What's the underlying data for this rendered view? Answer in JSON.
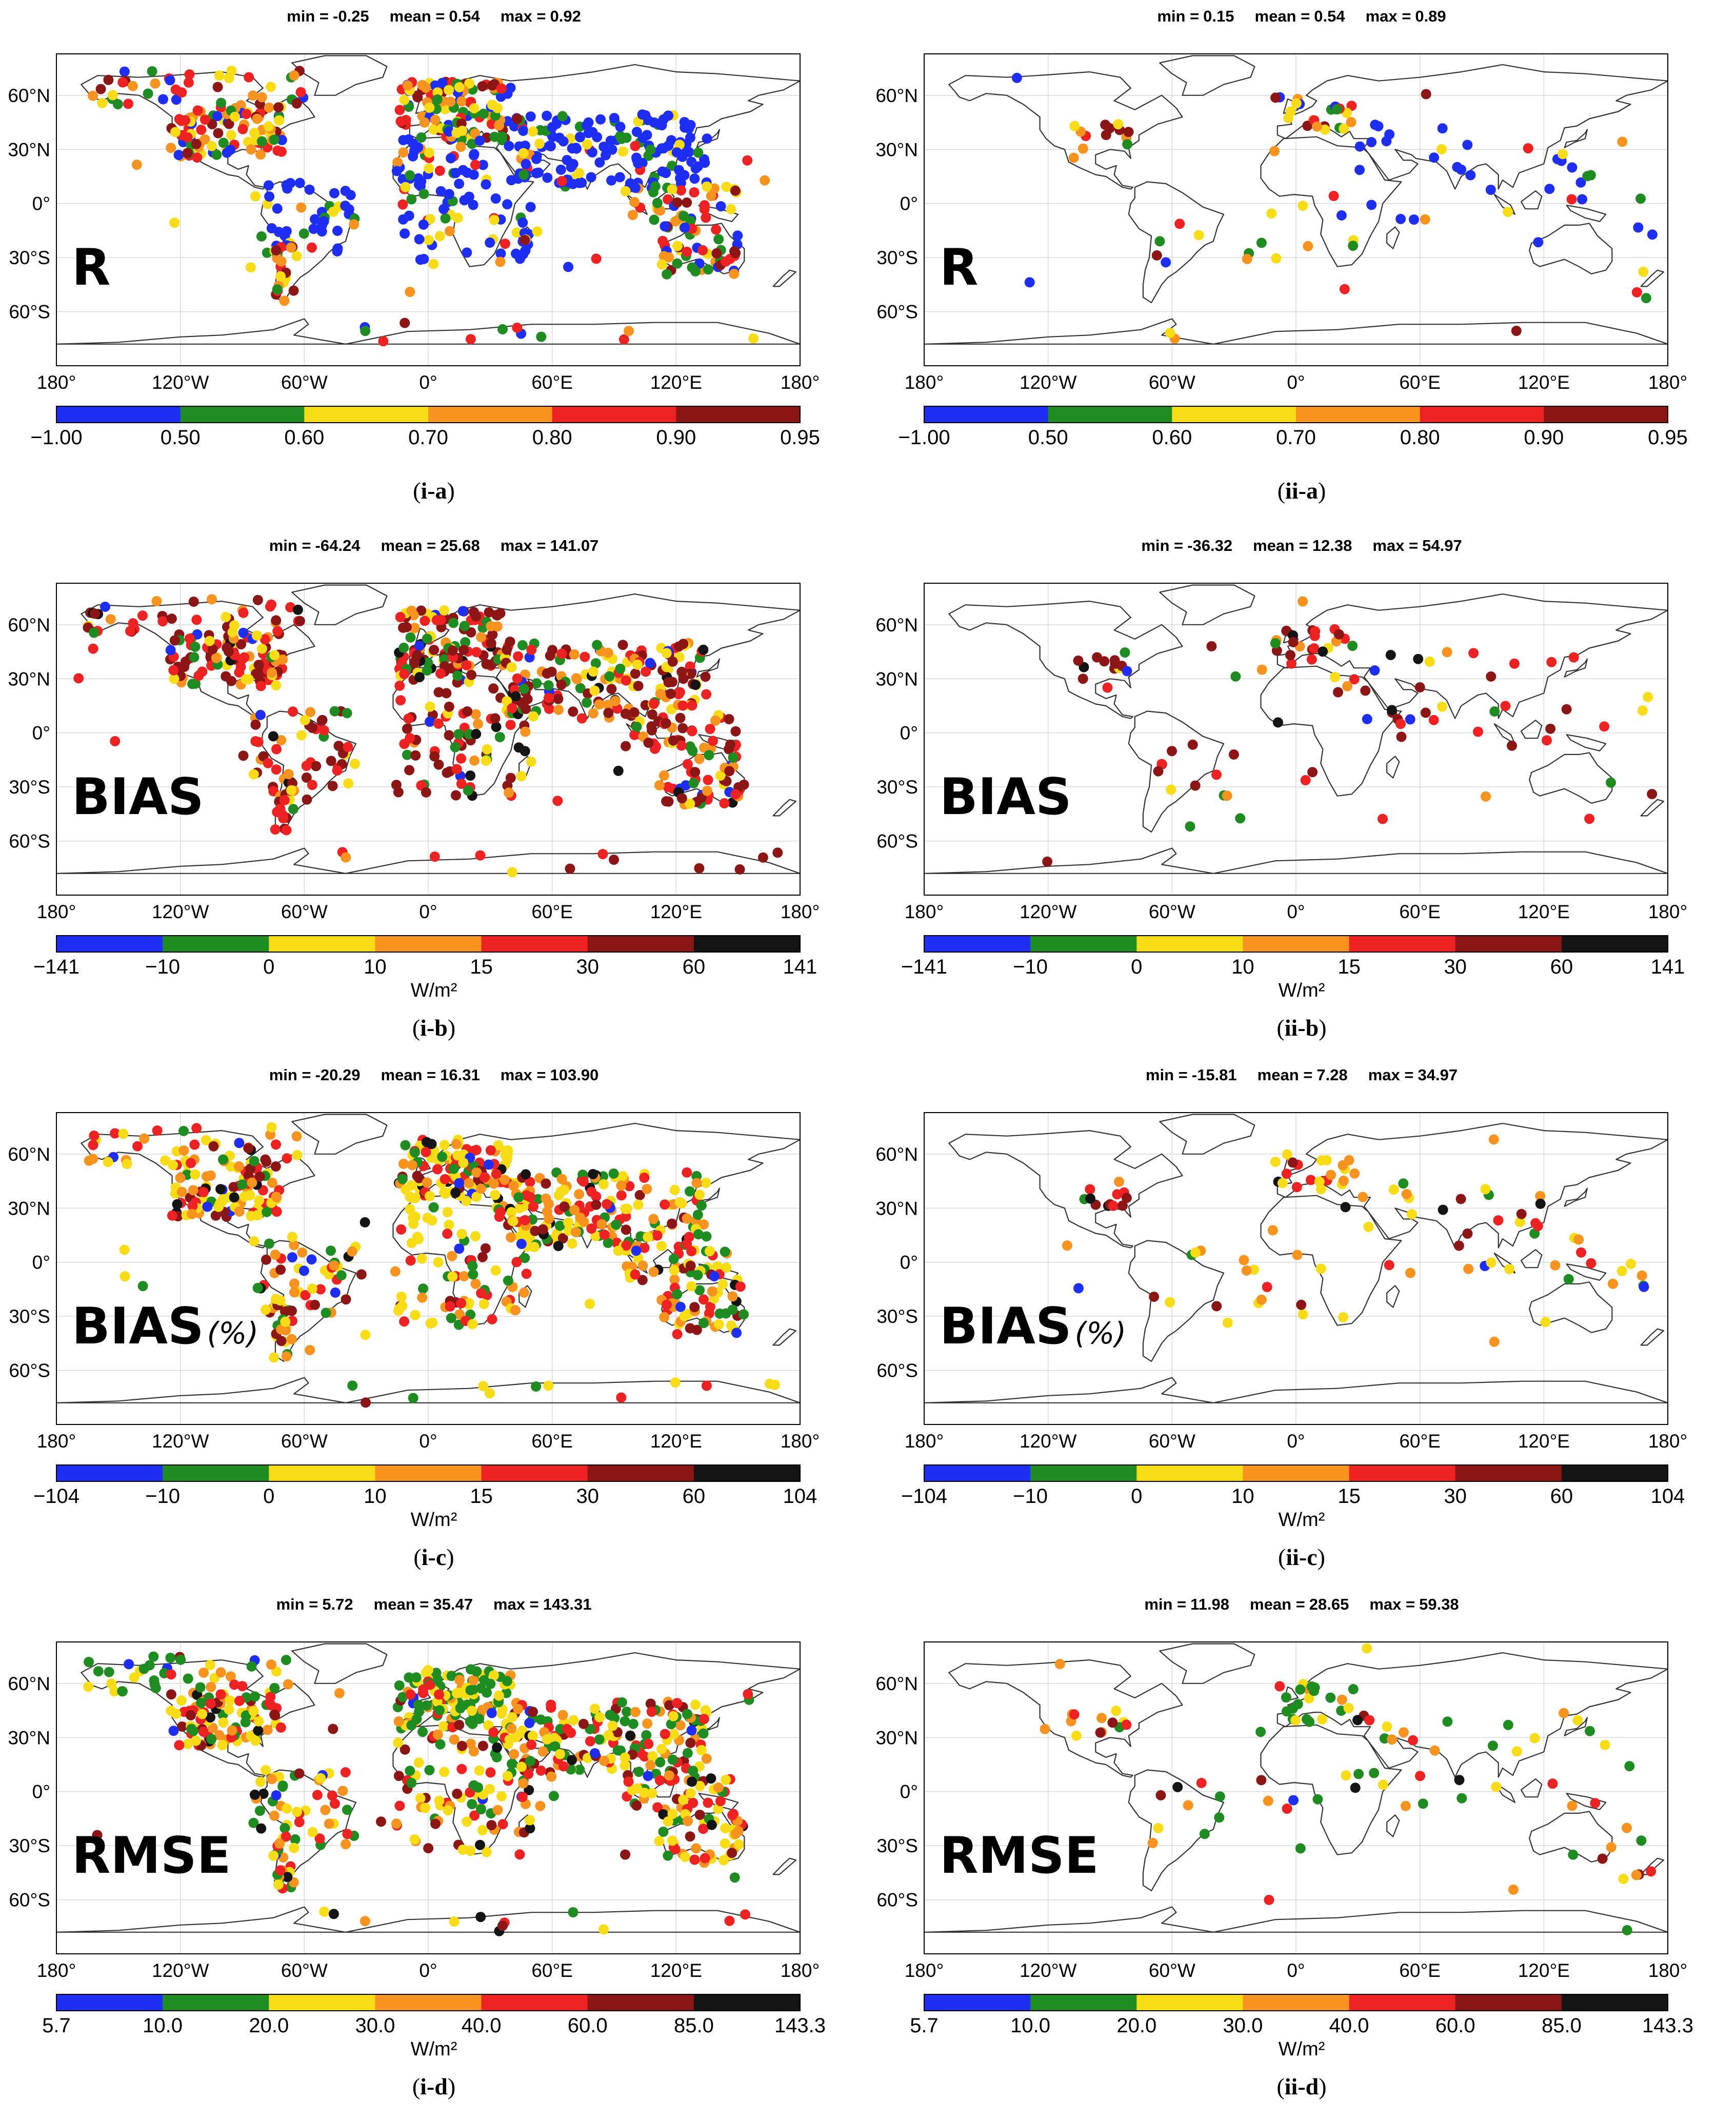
{
  "stats_labels": {
    "min": "min =",
    "mean": "mean =",
    "max": "max ="
  },
  "lat_labels": [
    "60°N",
    "30°N",
    "0°",
    "30°S",
    "60°S"
  ],
  "lon_labels": [
    "180°",
    "120°W",
    "60°W",
    "0°",
    "60°E",
    "120°E",
    "180°"
  ],
  "colorbar_colors": [
    "#1f2ef5",
    "#1f8c22",
    "#f7dc16",
    "#f7931e",
    "#ee2223",
    "#8c1616",
    "#141414"
  ],
  "panels": [
    {
      "id": "i-a",
      "label_main": "i",
      "label_sub": "a",
      "metric": "R",
      "metric_suffix": "",
      "min": "-0.25",
      "mean": "0.54",
      "max": "0.92",
      "ticks": [
        "−1.00",
        "0.50",
        "0.60",
        "0.70",
        "0.80",
        "0.90",
        "0.95"
      ],
      "unit": "",
      "network": "dense"
    },
    {
      "id": "ii-a",
      "label_main": "ii",
      "label_sub": "a",
      "metric": "R",
      "metric_suffix": "",
      "min": "0.15",
      "mean": "0.54",
      "max": "0.89",
      "ticks": [
        "−1.00",
        "0.50",
        "0.60",
        "0.70",
        "0.80",
        "0.90",
        "0.95"
      ],
      "unit": "",
      "network": "sparse"
    },
    {
      "id": "i-b",
      "label_main": "i",
      "label_sub": "b",
      "metric": "BIAS",
      "metric_suffix": "",
      "min": "-64.24",
      "mean": "25.68",
      "max": "141.07",
      "ticks": [
        "−141",
        "−10",
        "0",
        "10",
        "15",
        "30",
        "60",
        "141"
      ],
      "unit": "W/m²",
      "network": "dense"
    },
    {
      "id": "ii-b",
      "label_main": "ii",
      "label_sub": "b",
      "metric": "BIAS",
      "metric_suffix": "",
      "min": "-36.32",
      "mean": "12.38",
      "max": "54.97",
      "ticks": [
        "−141",
        "−10",
        "0",
        "10",
        "15",
        "30",
        "60",
        "141"
      ],
      "unit": "W/m²",
      "network": "sparse"
    },
    {
      "id": "i-c",
      "label_main": "i",
      "label_sub": "c",
      "metric": "BIAS",
      "metric_suffix": "(%)",
      "min": "-20.29",
      "mean": "16.31",
      "max": "103.90",
      "ticks": [
        "−104",
        "−10",
        "0",
        "10",
        "15",
        "30",
        "60",
        "104"
      ],
      "unit": "W/m²",
      "network": "dense"
    },
    {
      "id": "ii-c",
      "label_main": "ii",
      "label_sub": "c",
      "metric": "BIAS",
      "metric_suffix": "(%)",
      "min": "-15.81",
      "mean": "7.28",
      "max": "34.97",
      "ticks": [
        "−104",
        "−10",
        "0",
        "10",
        "15",
        "30",
        "60",
        "104"
      ],
      "unit": "W/m²",
      "network": "sparse"
    },
    {
      "id": "i-d",
      "label_main": "i",
      "label_sub": "d",
      "metric": "RMSE",
      "metric_suffix": "",
      "min": "5.72",
      "mean": "35.47",
      "max": "143.31",
      "ticks": [
        "5.7",
        "10.0",
        "20.0",
        "30.0",
        "40.0",
        "60.0",
        "85.0",
        "143.3"
      ],
      "unit": "W/m²",
      "network": "dense"
    },
    {
      "id": "ii-d",
      "label_main": "ii",
      "label_sub": "d",
      "metric": "RMSE",
      "metric_suffix": "",
      "min": "11.98",
      "mean": "28.65",
      "max": "59.38",
      "ticks": [
        "5.7",
        "10.0",
        "20.0",
        "30.0",
        "40.0",
        "60.0",
        "85.0",
        "143.3"
      ],
      "unit": "W/m²",
      "network": "sparse"
    }
  ]
}
